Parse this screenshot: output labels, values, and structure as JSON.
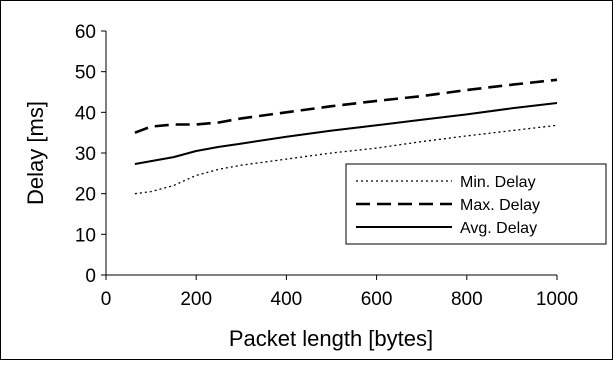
{
  "chart_data": {
    "type": "line",
    "title": "",
    "xlabel": "Packet length [bytes]",
    "ylabel": "Delay [ms]",
    "xlim": [
      0,
      1000
    ],
    "ylim": [
      0,
      60
    ],
    "xticks": [
      0,
      200,
      400,
      600,
      800,
      1000
    ],
    "yticks": [
      0,
      10,
      20,
      30,
      40,
      50,
      60
    ],
    "xtick_labels": [
      "0",
      "200",
      "400",
      "600",
      "800",
      "1000"
    ],
    "ytick_labels": [
      "0",
      "10",
      "20",
      "30",
      "40",
      "50",
      "60"
    ],
    "grid": false,
    "legend_position": "lower-right",
    "series": [
      {
        "name": "Min. Delay",
        "style": "dotted",
        "color": "#000000",
        "x": [
          64,
          100,
          150,
          200,
          250,
          300,
          400,
          500,
          600,
          700,
          800,
          900,
          1000
        ],
        "values": [
          20,
          20.5,
          22,
          24.5,
          26,
          27,
          28.5,
          30,
          31.2,
          32.8,
          34.2,
          35.5,
          36.8
        ]
      },
      {
        "name": "Max. Delay",
        "style": "dashed",
        "color": "#000000",
        "x": [
          64,
          100,
          150,
          200,
          250,
          300,
          400,
          500,
          600,
          700,
          800,
          900,
          1000
        ],
        "values": [
          35,
          36.5,
          37,
          37,
          37.5,
          38.5,
          40,
          41.5,
          42.8,
          44,
          45.5,
          46.8,
          48
        ]
      },
      {
        "name": "Avg. Delay",
        "style": "solid",
        "color": "#000000",
        "x": [
          64,
          100,
          150,
          200,
          250,
          300,
          400,
          500,
          600,
          700,
          800,
          900,
          1000
        ],
        "values": [
          27.3,
          28,
          29,
          30.5,
          31.5,
          32.3,
          34,
          35.5,
          36.8,
          38.2,
          39.5,
          41,
          42.3
        ]
      }
    ]
  }
}
